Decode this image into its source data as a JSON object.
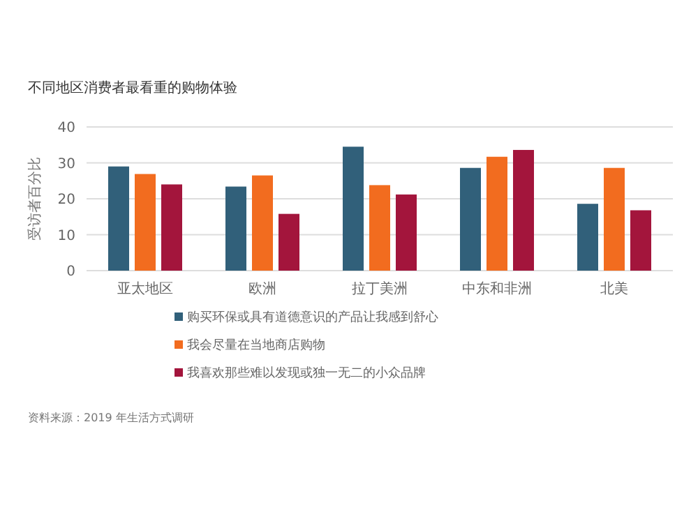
{
  "chart_data": {
    "type": "bar",
    "title": "不同地区消费者最看重的购物体验",
    "ylabel": "受访者百分比",
    "categories": [
      "亚太地区",
      "欧洲",
      "拉丁美洲",
      "中东和非洲",
      "北美"
    ],
    "series": [
      {
        "name": "购买环保或具有道德意识的产品让我感到舒心",
        "color": "#31607a",
        "values": [
          29,
          23.4,
          34.5,
          28.6,
          18.6
        ]
      },
      {
        "name": "我会尽量在当地商店购物",
        "color": "#f26c1f",
        "values": [
          26.9,
          26.5,
          23.8,
          31.7,
          28.6
        ]
      },
      {
        "name": "我喜欢那些难以发现或独一无二的小众品牌",
        "color": "#a3153c",
        "values": [
          24,
          15.8,
          21.2,
          33.6,
          16.8
        ]
      }
    ],
    "ylim": [
      0,
      40
    ],
    "yticks": [
      0,
      10,
      20,
      30,
      40
    ],
    "grid": "y",
    "legend": "bottom",
    "annotations": [
      "资料来源：2019 年生活方式调研"
    ]
  }
}
